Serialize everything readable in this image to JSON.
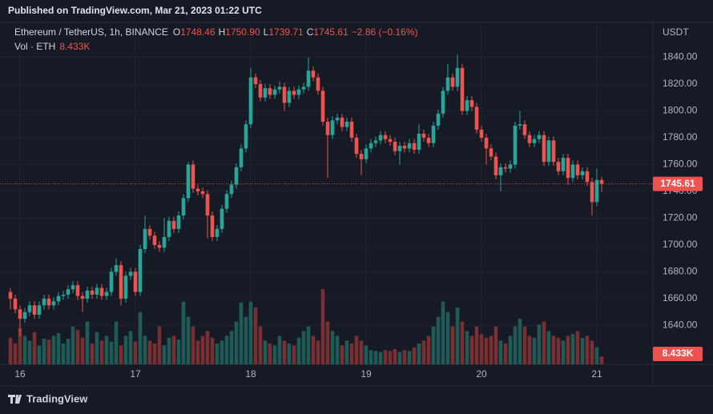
{
  "header": {
    "published": "Published on TradingView.com, Mar 21, 2023 01:22 UTC"
  },
  "footer": {
    "brand": "TradingView"
  },
  "chart_data": {
    "type": "candlestick",
    "legend": {
      "symbol": "Ethereum / TetherUS, 1h, BINANCE",
      "fields": [
        {
          "label": "O",
          "value": "1748.46"
        },
        {
          "label": "H",
          "value": "1750.90"
        },
        {
          "label": "L",
          "value": "1739.71"
        },
        {
          "label": "C",
          "value": "1745.61"
        }
      ],
      "change": "−2.86 (−0.16%)"
    },
    "volume_legend": {
      "label": "Vol · ETH"
    },
    "y_axis_label": "USDT",
    "categories": [
      null,
      null,
      "16",
      null,
      null,
      null,
      null,
      null,
      null,
      null,
      null,
      null,
      null,
      null,
      null,
      null,
      null,
      null,
      null,
      null,
      null,
      null,
      null,
      null,
      null,
      null,
      "17",
      null,
      null,
      null,
      null,
      null,
      null,
      null,
      null,
      null,
      null,
      null,
      null,
      null,
      null,
      null,
      null,
      null,
      null,
      null,
      null,
      null,
      null,
      null,
      "18",
      null,
      null,
      null,
      null,
      null,
      null,
      null,
      null,
      null,
      null,
      null,
      null,
      null,
      null,
      null,
      null,
      null,
      null,
      null,
      null,
      null,
      null,
      null,
      "19",
      null,
      null,
      null,
      null,
      null,
      null,
      null,
      null,
      null,
      null,
      null,
      null,
      null,
      null,
      null,
      null,
      null,
      null,
      null,
      null,
      null,
      null,
      null,
      "20",
      null,
      null,
      null,
      null,
      null,
      null,
      null,
      null,
      null,
      null,
      null,
      null,
      null,
      null,
      null,
      null,
      null,
      null,
      null,
      null,
      null,
      null,
      null,
      "21",
      null
    ],
    "open": [
      1665,
      1660,
      1652,
      1645,
      1650,
      1655,
      1648,
      1655,
      1660,
      1655,
      1658,
      1662,
      1663,
      1667,
      1670,
      1662,
      1660,
      1666,
      1663,
      1668,
      1662,
      1665,
      1680,
      1685,
      1660,
      1677,
      1680,
      1665,
      1697,
      1712,
      1707,
      1700,
      1698,
      1706,
      1718,
      1712,
      1722,
      1735,
      1760,
      1742,
      1740,
      1738,
      1722,
      1706,
      1712,
      1727,
      1738,
      1745,
      1758,
      1772,
      1790,
      1825,
      1820,
      1810,
      1817,
      1812,
      1816,
      1818,
      1806,
      1815,
      1812,
      1816,
      1818,
      1830,
      1825,
      1815,
      1792,
      1782,
      1793,
      1795,
      1788,
      1792,
      1780,
      1768,
      1764,
      1772,
      1776,
      1778,
      1782,
      1779,
      1777,
      1770,
      1774,
      1772,
      1776,
      1771,
      1783,
      1780,
      1776,
      1789,
      1798,
      1815,
      1825,
      1818,
      1832,
      1800,
      1808,
      1803,
      1786,
      1780,
      1772,
      1766,
      1752,
      1758,
      1757,
      1760,
      1789,
      1790,
      1782,
      1776,
      1779,
      1782,
      1762,
      1778,
      1762,
      1755,
      1765,
      1750,
      1760,
      1752,
      1755,
      1747,
      1732,
      1748.46
    ],
    "high": [
      1668,
      1663,
      1655,
      1653,
      1658,
      1658,
      1658,
      1663,
      1663,
      1661,
      1665,
      1666,
      1670,
      1673,
      1673,
      1665,
      1669,
      1669,
      1671,
      1671,
      1668,
      1683,
      1690,
      1688,
      1680,
      1683,
      1683,
      1700,
      1722,
      1715,
      1710,
      1703,
      1720,
      1721,
      1721,
      1725,
      1738,
      1762,
      1763,
      1745,
      1743,
      1741,
      1725,
      1715,
      1730,
      1741,
      1748,
      1761,
      1775,
      1793,
      1832,
      1828,
      1823,
      1820,
      1820,
      1819,
      1822,
      1821,
      1818,
      1818,
      1819,
      1821,
      1840,
      1833,
      1828,
      1818,
      1795,
      1796,
      1798,
      1798,
      1795,
      1795,
      1783,
      1771,
      1775,
      1779,
      1781,
      1785,
      1785,
      1782,
      1780,
      1777,
      1777,
      1779,
      1779,
      1790,
      1786,
      1783,
      1792,
      1801,
      1818,
      1835,
      1828,
      1842,
      1835,
      1811,
      1811,
      1806,
      1789,
      1783,
      1775,
      1769,
      1761,
      1761,
      1763,
      1792,
      1800,
      1793,
      1785,
      1782,
      1785,
      1785,
      1781,
      1781,
      1765,
      1768,
      1768,
      1763,
      1763,
      1758,
      1758,
      1750,
      1757,
      1750.9
    ],
    "low": [
      1652,
      1649,
      1632,
      1642,
      1647,
      1645,
      1645,
      1652,
      1652,
      1652,
      1655,
      1659,
      1660,
      1664,
      1659,
      1650,
      1657,
      1660,
      1660,
      1659,
      1659,
      1662,
      1677,
      1655,
      1657,
      1674,
      1662,
      1662,
      1694,
      1704,
      1697,
      1695,
      1695,
      1703,
      1709,
      1709,
      1719,
      1732,
      1739,
      1737,
      1735,
      1705,
      1703,
      1703,
      1709,
      1724,
      1735,
      1742,
      1755,
      1769,
      1787,
      1817,
      1807,
      1807,
      1809,
      1809,
      1813,
      1800,
      1803,
      1809,
      1809,
      1813,
      1815,
      1822,
      1812,
      1789,
      1750,
      1779,
      1790,
      1785,
      1785,
      1777,
      1765,
      1752,
      1761,
      1769,
      1773,
      1775,
      1776,
      1774,
      1767,
      1760,
      1769,
      1769,
      1768,
      1768,
      1777,
      1773,
      1773,
      1786,
      1795,
      1812,
      1815,
      1815,
      1797,
      1797,
      1800,
      1783,
      1777,
      1760,
      1763,
      1749,
      1740,
      1754,
      1754,
      1757,
      1786,
      1779,
      1773,
      1773,
      1776,
      1759,
      1759,
      1759,
      1752,
      1752,
      1745,
      1747,
      1749,
      1749,
      1744,
      1722,
      1729,
      1739.71
    ],
    "close": [
      1660,
      1652,
      1645,
      1650,
      1655,
      1648,
      1655,
      1660,
      1655,
      1658,
      1662,
      1663,
      1667,
      1670,
      1662,
      1660,
      1666,
      1663,
      1668,
      1662,
      1665,
      1680,
      1685,
      1660,
      1677,
      1680,
      1665,
      1697,
      1712,
      1707,
      1700,
      1698,
      1706,
      1718,
      1712,
      1722,
      1735,
      1760,
      1742,
      1740,
      1738,
      1722,
      1706,
      1712,
      1727,
      1738,
      1745,
      1758,
      1772,
      1790,
      1825,
      1820,
      1810,
      1817,
      1812,
      1816,
      1818,
      1806,
      1815,
      1812,
      1816,
      1818,
      1830,
      1825,
      1815,
      1792,
      1782,
      1793,
      1795,
      1788,
      1792,
      1780,
      1768,
      1764,
      1772,
      1776,
      1778,
      1782,
      1779,
      1777,
      1770,
      1774,
      1772,
      1776,
      1771,
      1783,
      1780,
      1776,
      1789,
      1798,
      1815,
      1825,
      1818,
      1832,
      1800,
      1808,
      1803,
      1786,
      1780,
      1772,
      1766,
      1752,
      1758,
      1757,
      1760,
      1789,
      1790,
      1782,
      1776,
      1779,
      1782,
      1762,
      1778,
      1762,
      1755,
      1765,
      1750,
      1760,
      1752,
      1755,
      1747,
      1732,
      1748.46,
      1745.61
    ],
    "volume": [
      28000,
      22000,
      38000,
      30000,
      25000,
      34000,
      20000,
      27000,
      26000,
      30000,
      33000,
      22000,
      27000,
      40000,
      36000,
      28000,
      45000,
      22000,
      34000,
      25000,
      30000,
      24000,
      45000,
      20000,
      30000,
      35000,
      24000,
      55000,
      30000,
      25000,
      22000,
      40000,
      20000,
      28000,
      30000,
      26000,
      66000,
      50000,
      40000,
      25000,
      30000,
      35000,
      28000,
      22000,
      25000,
      30000,
      35000,
      45000,
      65000,
      50000,
      66000,
      60000,
      40000,
      25000,
      22000,
      20000,
      30000,
      25000,
      22000,
      20000,
      28000,
      35000,
      40000,
      30000,
      25000,
      79000,
      45000,
      35000,
      30000,
      20000,
      25000,
      22000,
      30000,
      25000,
      20000,
      15000,
      14000,
      13000,
      15000,
      14000,
      16000,
      13000,
      15000,
      14000,
      18000,
      22000,
      25000,
      30000,
      40000,
      50000,
      66000,
      55000,
      40000,
      60000,
      45000,
      35000,
      30000,
      40000,
      32000,
      28000,
      30000,
      40000,
      25000,
      22000,
      30000,
      40000,
      48000,
      40000,
      30000,
      28000,
      42000,
      45000,
      35000,
      30000,
      28000,
      25000,
      30000,
      32000,
      35000,
      28000,
      30000,
      25000,
      18000,
      8433
    ],
    "ylim": [
      1611,
      1866
    ],
    "yticks": [
      {
        "value": 1640,
        "label": "1640.00"
      },
      {
        "value": 1660,
        "label": "1660.00"
      },
      {
        "value": 1680,
        "label": "1680.00"
      },
      {
        "value": 1700,
        "label": "1700.00"
      },
      {
        "value": 1720,
        "label": "1720.00"
      },
      {
        "value": 1740,
        "label": "1740.00"
      },
      {
        "value": 1760,
        "label": "1760.00"
      },
      {
        "value": 1780,
        "label": "1780.00"
      },
      {
        "value": 1800,
        "label": "1800.00"
      },
      {
        "value": 1820,
        "label": "1820.00"
      },
      {
        "value": 1840,
        "label": "1840.00"
      }
    ],
    "y2lim": [
      0,
      360000
    ],
    "last_price": {
      "value": 1745.61,
      "label": "1745.61"
    },
    "last_volume": {
      "value": 8433,
      "label": "8.433K"
    },
    "grid": true,
    "up_color": "#26a69a",
    "down_color": "#ef5350",
    "up_volume_color": "#1f5c58",
    "down_volume_color": "#7a3033"
  }
}
